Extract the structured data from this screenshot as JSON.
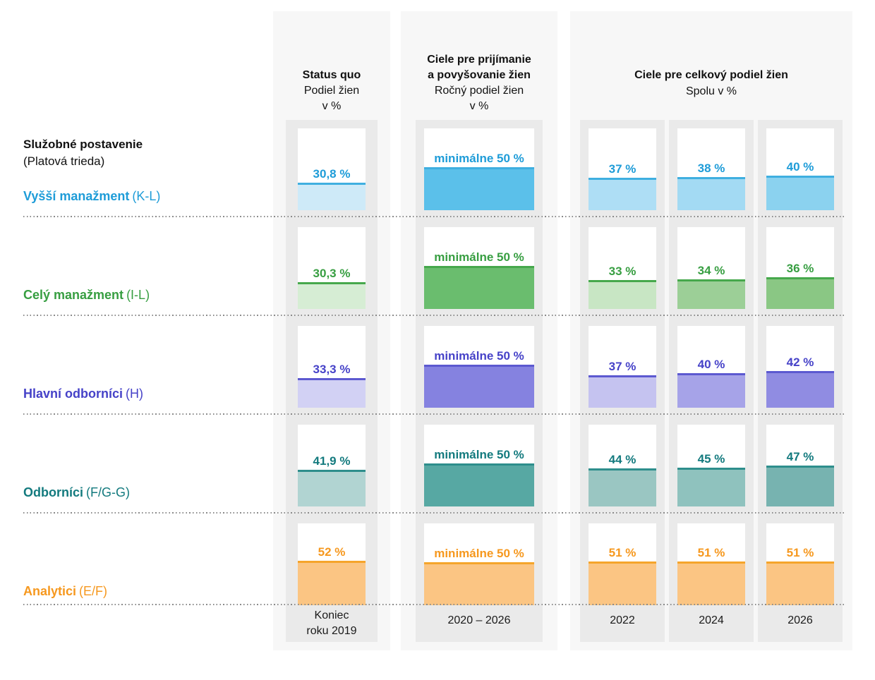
{
  "left_panel": {
    "title": "Služobné postavenie",
    "subtitle": "(Platová trieda)"
  },
  "columns": {
    "status_quo": {
      "title": "Status quo",
      "sub1": "Podiel žien",
      "sub2": "v %",
      "footer1": "Koniec",
      "footer2": "roku 2019"
    },
    "hiring": {
      "title1": "Ciele pre prijímanie",
      "title2": "a povyšovanie žien",
      "sub1": "Ročný podiel žien",
      "sub2": "v %",
      "footer": "2020 – 2026"
    },
    "total": {
      "title": "Ciele pre celkový podiel žien",
      "sub": "Spolu v %",
      "years": [
        "2022",
        "2024",
        "2026"
      ]
    }
  },
  "rows": [
    {
      "name": "Vyšší manažment",
      "grade": "(K-L)",
      "text_color": "#1E9CD8",
      "line_color": "#3FAFE0",
      "status_quo": {
        "label": "30,8 %",
        "value": 30.8,
        "fill": "#CEEAF8"
      },
      "hiring": {
        "label": "minimálne 50 %",
        "value": 50,
        "fill": "#5BC0EA"
      },
      "totals": [
        {
          "label": "37 %",
          "value": 37,
          "fill": "#AEDEF5"
        },
        {
          "label": "38 %",
          "value": 38,
          "fill": "#A3DAF3"
        },
        {
          "label": "40 %",
          "value": 40,
          "fill": "#8BD2EF"
        }
      ]
    },
    {
      "name": "Celý manažment",
      "grade": "(I-L)",
      "text_color": "#379E41",
      "line_color": "#46A84C",
      "status_quo": {
        "label": "30,3 %",
        "value": 30.3,
        "fill": "#D6EDD4"
      },
      "hiring": {
        "label": "minimálne 50 %",
        "value": 50,
        "fill": "#6ABD6E"
      },
      "totals": [
        {
          "label": "33 %",
          "value": 33,
          "fill": "#C8E6C4"
        },
        {
          "label": "34 %",
          "value": 34,
          "fill": "#9CCF97"
        },
        {
          "label": "36 %",
          "value": 36,
          "fill": "#8AC784"
        }
      ]
    },
    {
      "name": "Hlavní odborníci",
      "grade": "(H)",
      "text_color": "#4642C8",
      "line_color": "#5C59D0",
      "status_quo": {
        "label": "33,3 %",
        "value": 33.3,
        "fill": "#D2D1F4"
      },
      "hiring": {
        "label": "minimálne 50 %",
        "value": 50,
        "fill": "#8582E0"
      },
      "totals": [
        {
          "label": "37 %",
          "value": 37,
          "fill": "#C5C3F0"
        },
        {
          "label": "40 %",
          "value": 40,
          "fill": "#A6A3E8"
        },
        {
          "label": "42 %",
          "value": 42,
          "fill": "#908CE2"
        }
      ]
    },
    {
      "name": "Odborníci",
      "grade": "(F/G-G)",
      "text_color": "#137A7E",
      "line_color": "#2E8E8C",
      "status_quo": {
        "label": "41,9 %",
        "value": 41.9,
        "fill": "#B1D4D2"
      },
      "hiring": {
        "label": "minimálne 50 %",
        "value": 50,
        "fill": "#57A8A3"
      },
      "totals": [
        {
          "label": "44 %",
          "value": 44,
          "fill": "#9AC6C2"
        },
        {
          "label": "45 %",
          "value": 45,
          "fill": "#8FC2BE"
        },
        {
          "label": "47 %",
          "value": 47,
          "fill": "#77B3B0"
        }
      ]
    },
    {
      "name": "Analytici",
      "grade": "(E/F)",
      "text_color": "#F6981E",
      "line_color": "#F5A52B",
      "status_quo": {
        "label": "52 %",
        "value": 52,
        "fill": "#FBC583"
      },
      "hiring": {
        "label": "minimálne 50 %",
        "value": 50,
        "fill": "#FBC583"
      },
      "totals": [
        {
          "label": "51 %",
          "value": 51,
          "fill": "#FBC583"
        },
        {
          "label": "51 %",
          "value": 51,
          "fill": "#FBC583"
        },
        {
          "label": "51 %",
          "value": 51,
          "fill": "#FBC583"
        }
      ]
    }
  ],
  "chart_data": {
    "type": "bar",
    "title": "Ciele pre podiel žien podľa služobného postavenia",
    "categories": [
      "Vyšší manažment (K-L)",
      "Celý manažment (I-L)",
      "Hlavní odborníci (H)",
      "Odborníci (F/G-G)",
      "Analytici (E/F)"
    ],
    "series": [
      {
        "name": "Status quo – Podiel žien v % (Koniec roku 2019)",
        "values": [
          30.8,
          30.3,
          33.3,
          41.9,
          52
        ]
      },
      {
        "name": "Ciele pre prijímanie a povyšovanie žien – Ročný podiel žien v % (2020 – 2026)",
        "values": [
          50,
          50,
          50,
          50,
          50
        ],
        "annotation": "minimálne 50 %"
      },
      {
        "name": "Ciele pre celkový podiel žien – Spolu v % (2022)",
        "values": [
          37,
          33,
          37,
          44,
          51
        ]
      },
      {
        "name": "Ciele pre celkový podiel žien – Spolu v % (2024)",
        "values": [
          38,
          34,
          40,
          45,
          51
        ]
      },
      {
        "name": "Ciele pre celkový podiel žien – Spolu v % (2026)",
        "values": [
          40,
          36,
          42,
          47,
          51
        ]
      }
    ],
    "unit": "%",
    "ylim": [
      0,
      100
    ],
    "grid": false,
    "legend_position": "column-headers"
  }
}
